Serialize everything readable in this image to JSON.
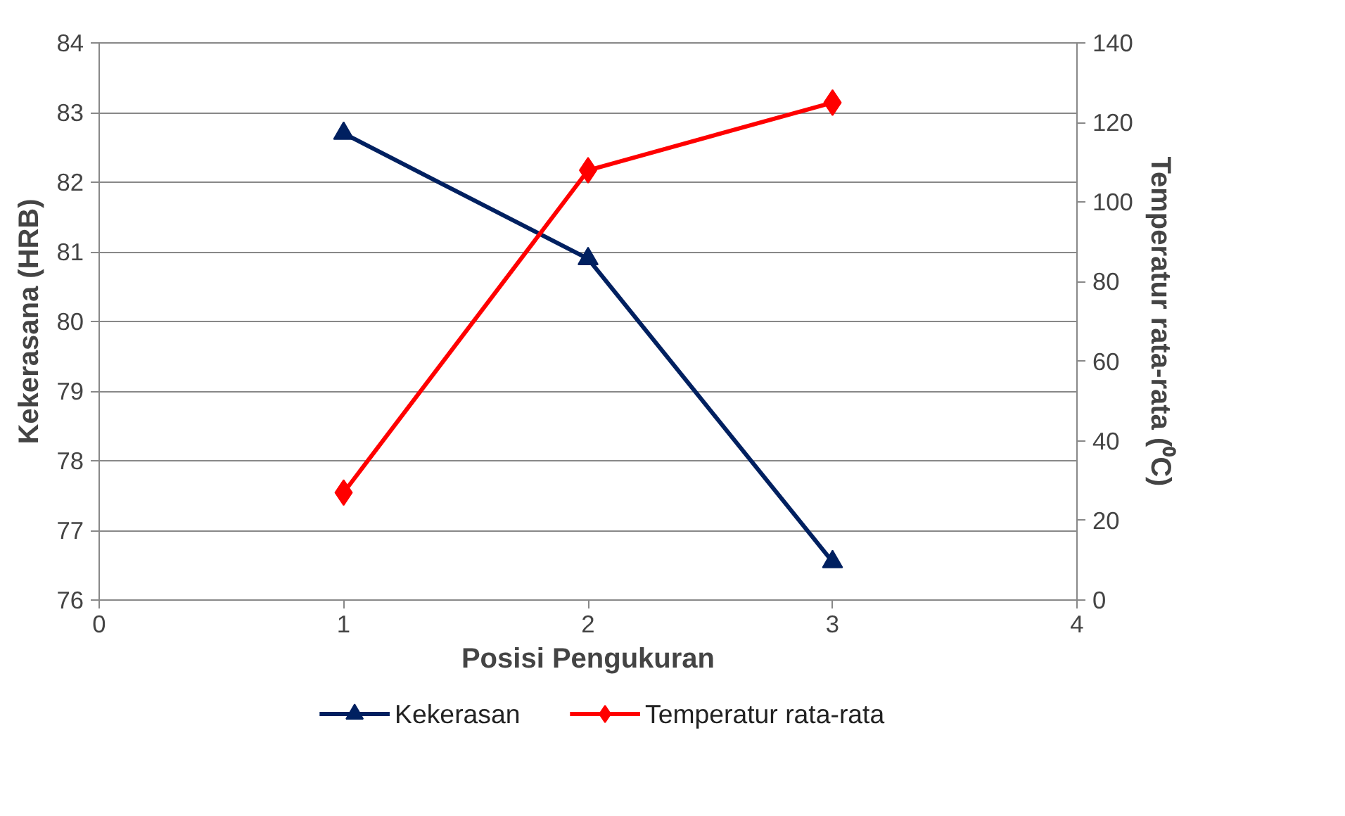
{
  "chart_data": {
    "type": "line",
    "xlabel": "Posisi Pengukuran",
    "ylabel": "Kekerasana (HRB)",
    "y2label": "Temperatur rata-rata (⁰C)",
    "x": [
      1,
      2,
      3
    ],
    "series": [
      {
        "name": "Kekerasan",
        "color": "#002060",
        "values": [
          82.7,
          80.9,
          76.55
        ],
        "marker": "triangle"
      },
      {
        "name": "Temperatur rata-rata",
        "color": "#ff0000",
        "values": [
          27,
          108,
          125
        ],
        "marker": "diamond",
        "axis": "y2"
      }
    ],
    "xlim": [
      0,
      4
    ],
    "xticks": [
      0,
      1,
      2,
      3,
      4
    ],
    "ylim": [
      76,
      84
    ],
    "yticks": [
      76,
      77,
      78,
      79,
      80,
      81,
      82,
      83,
      84
    ],
    "y2lim": [
      0,
      140
    ],
    "y2ticks": [
      0,
      20,
      40,
      60,
      80,
      100,
      120,
      140
    ],
    "grid": "y",
    "legend": "bottom"
  }
}
